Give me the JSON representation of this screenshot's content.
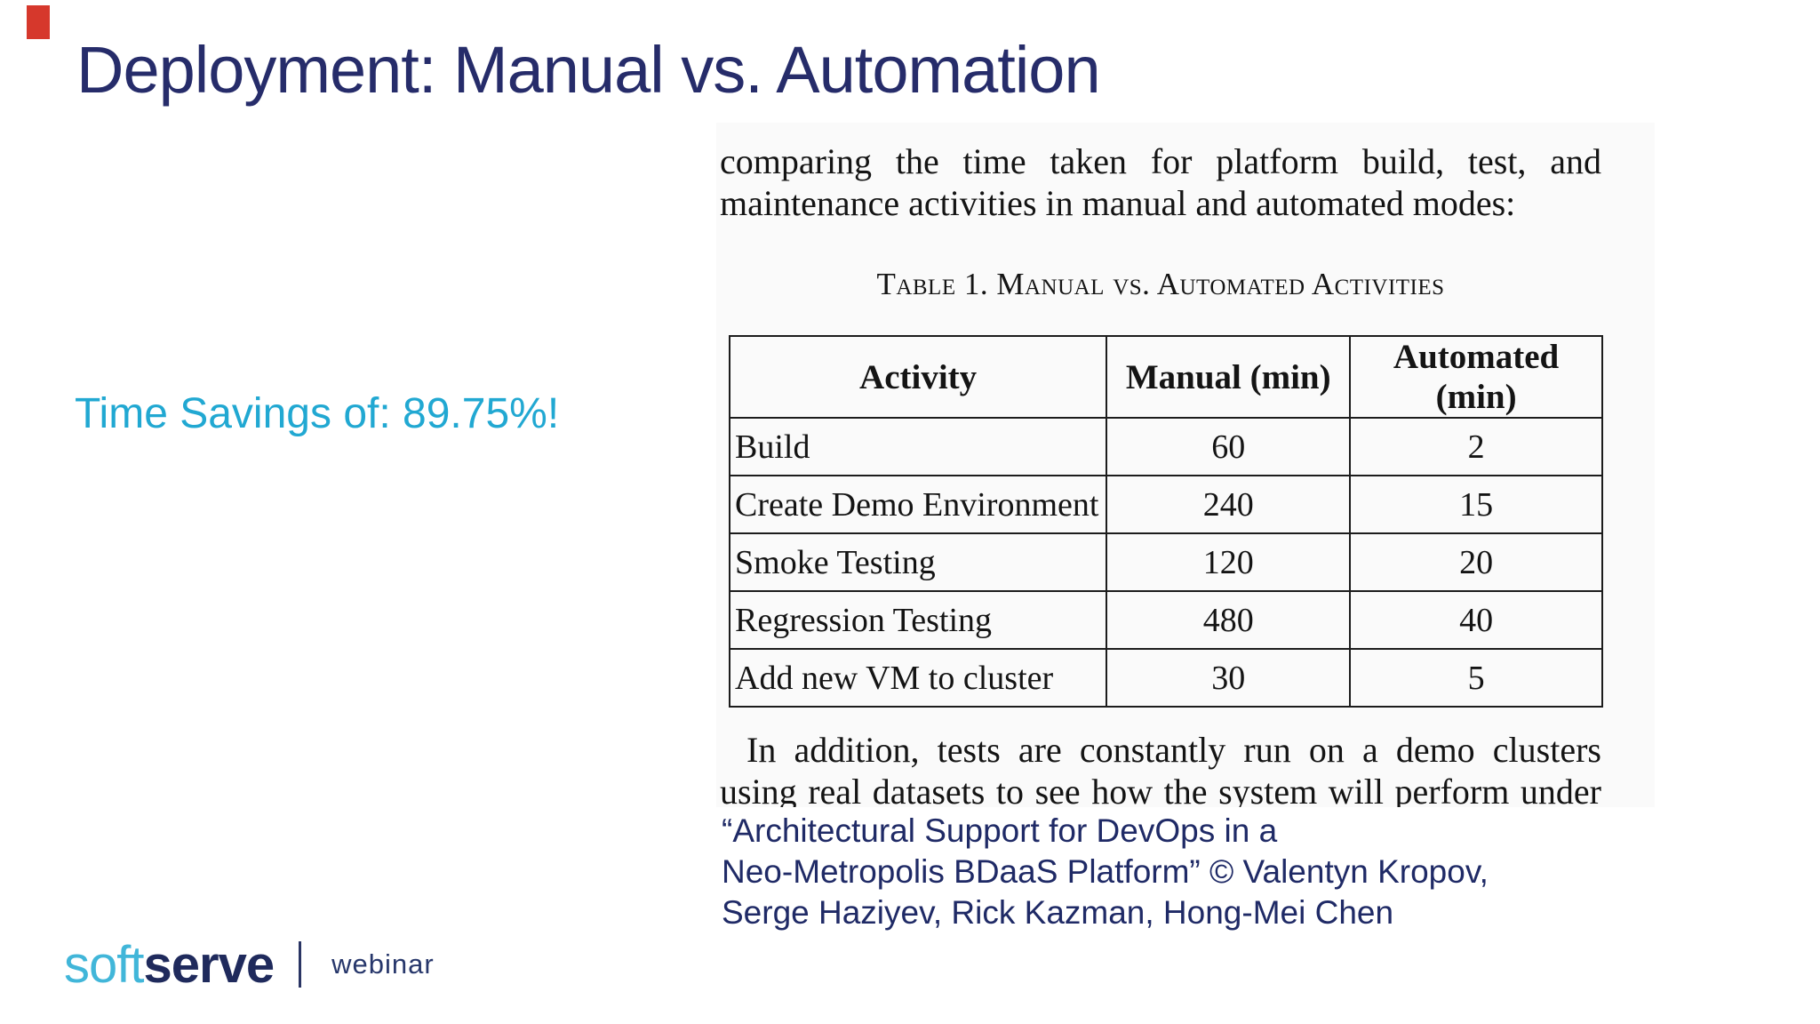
{
  "slide": {
    "title": "Deployment: Manual vs. Automation",
    "highlight": "Time Savings of: 89.75%!",
    "colors": {
      "navy": "#262c6a",
      "cyan": "#21a8d2",
      "accent_red": "#d6382c",
      "logo_cyan": "#41b6d9",
      "logo_navy": "#1f2a5c"
    }
  },
  "paper": {
    "intro_line1": "comparing the time taken for platform build, test, and",
    "intro_line2": "maintenance activities in manual and automated modes:",
    "table_caption": "Table 1. Manual vs. Automated Activities",
    "table": {
      "headers": [
        "Activity",
        "Manual (min)",
        "Automated (min)"
      ],
      "rows": [
        [
          "Build",
          "60",
          "2"
        ],
        [
          "Create Demo Environment",
          "240",
          "15"
        ],
        [
          "Smoke Testing",
          "120",
          "20"
        ],
        [
          "Regression Testing",
          "480",
          "40"
        ],
        [
          "Add new VM to cluster",
          "30",
          "5"
        ]
      ]
    },
    "outro_line1": "In addition, tests are constantly run on a demo clusters",
    "outro_line2": "using real datasets to see how the system will perform under"
  },
  "citation": {
    "line1": "“Architectural Support for DevOps in a",
    "line2": "Neo-Metropolis BDaaS Platform” © Valentyn Kropov,",
    "line3": "Serge Haziyev, Rick Kazman, Hong-Mei Chen"
  },
  "footer": {
    "logo_soft": "soft",
    "logo_serve": "serve",
    "label": "webinar"
  }
}
